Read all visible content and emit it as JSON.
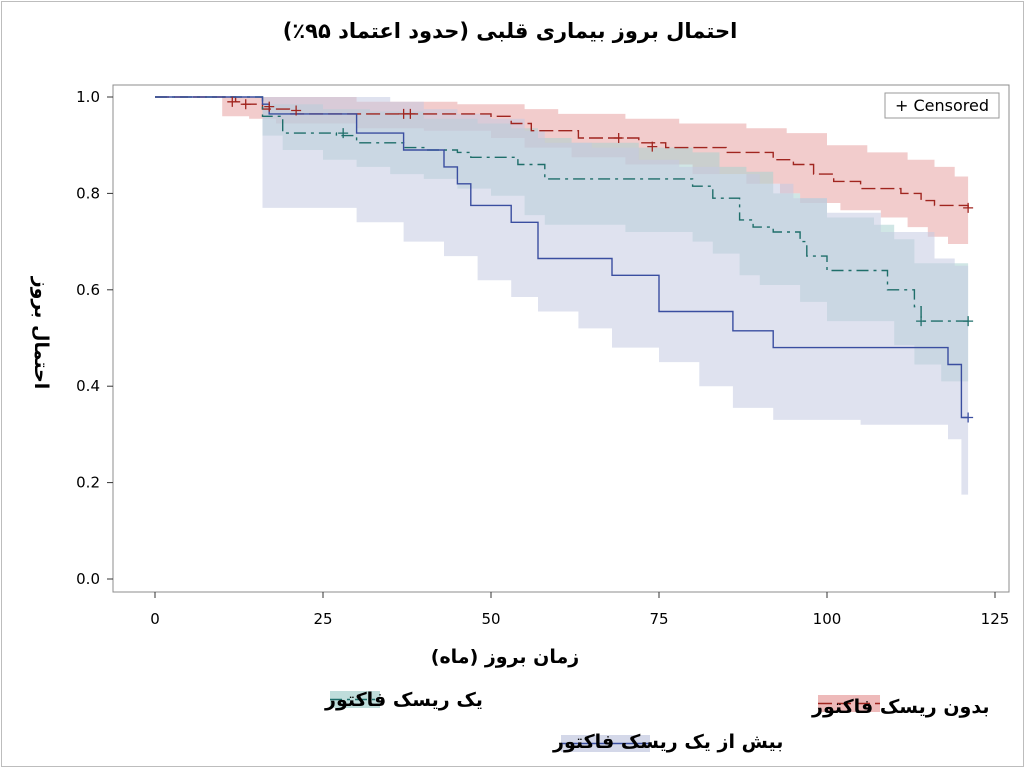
{
  "chart_data": {
    "type": "line",
    "title": "احتمال بروز بیماری قلبی (حدود اعتماد ۹۵٪)",
    "xlabel": "زمان بروز (ماه)",
    "ylabel": "احتمال بروز",
    "xlim": [
      0,
      125
    ],
    "ylim": [
      0,
      1.0
    ],
    "xticks": [
      "0",
      "25",
      "50",
      "75",
      "100",
      "125"
    ],
    "yticks": [
      "0.0",
      "0.2",
      "0.4",
      "0.6",
      "0.8",
      "1.0"
    ],
    "censored_label": "+ Censored",
    "grid": false,
    "legend": "bottom",
    "series": [
      {
        "name": "بدون ریسک فاکتور",
        "color": "#a0251f",
        "band_color": "#e8a3a3",
        "dash": "long-dash",
        "steps": [
          [
            0,
            1.0
          ],
          [
            12,
            0.99
          ],
          [
            13,
            0.985
          ],
          [
            16,
            0.975
          ],
          [
            20,
            0.965
          ],
          [
            50,
            0.96
          ],
          [
            53,
            0.945
          ],
          [
            56,
            0.93
          ],
          [
            63,
            0.915
          ],
          [
            72,
            0.905
          ],
          [
            76,
            0.895
          ],
          [
            85,
            0.885
          ],
          [
            92,
            0.87
          ],
          [
            95,
            0.86
          ],
          [
            98,
            0.84
          ],
          [
            101,
            0.825
          ],
          [
            105,
            0.81
          ],
          [
            111,
            0.8
          ],
          [
            114,
            0.785
          ],
          [
            116,
            0.775
          ],
          [
            121,
            0.77
          ]
        ],
        "lower": [
          [
            0,
            1.0
          ],
          [
            10,
            0.96
          ],
          [
            14,
            0.955
          ],
          [
            18,
            0.945
          ],
          [
            30,
            0.935
          ],
          [
            40,
            0.93
          ],
          [
            50,
            0.915
          ],
          [
            55,
            0.895
          ],
          [
            62,
            0.875
          ],
          [
            70,
            0.86
          ],
          [
            80,
            0.84
          ],
          [
            88,
            0.82
          ],
          [
            93,
            0.8
          ],
          [
            96,
            0.78
          ],
          [
            102,
            0.765
          ],
          [
            108,
            0.75
          ],
          [
            112,
            0.73
          ],
          [
            115,
            0.71
          ],
          [
            118,
            0.695
          ],
          [
            121,
            0.69
          ]
        ],
        "upper": [
          [
            0,
            1.0
          ],
          [
            15,
            1.0
          ],
          [
            30,
            0.99
          ],
          [
            45,
            0.985
          ],
          [
            55,
            0.975
          ],
          [
            60,
            0.965
          ],
          [
            70,
            0.955
          ],
          [
            78,
            0.945
          ],
          [
            88,
            0.935
          ],
          [
            94,
            0.925
          ],
          [
            100,
            0.9
          ],
          [
            106,
            0.885
          ],
          [
            112,
            0.87
          ],
          [
            116,
            0.855
          ],
          [
            119,
            0.835
          ],
          [
            121,
            0.83
          ]
        ],
        "censored": [
          [
            11.5,
            0.99
          ],
          [
            13.5,
            0.985
          ],
          [
            17,
            0.98
          ],
          [
            21,
            0.972
          ],
          [
            37,
            0.965
          ],
          [
            38,
            0.965
          ],
          [
            69,
            0.915
          ],
          [
            74,
            0.897
          ],
          [
            121,
            0.77
          ]
        ]
      },
      {
        "name": "یک ریسک فاکتور",
        "color": "#1e6e6a",
        "band_color": "#a9d1cf",
        "dash": "dash-dot",
        "steps": [
          [
            0,
            1.0
          ],
          [
            16,
            0.96
          ],
          [
            19,
            0.925
          ],
          [
            27,
            0.92
          ],
          [
            30,
            0.905
          ],
          [
            37,
            0.895
          ],
          [
            40,
            0.89
          ],
          [
            45,
            0.885
          ],
          [
            47,
            0.875
          ],
          [
            54,
            0.86
          ],
          [
            58,
            0.83
          ],
          [
            80,
            0.815
          ],
          [
            83,
            0.79
          ],
          [
            87,
            0.745
          ],
          [
            89,
            0.73
          ],
          [
            92,
            0.72
          ],
          [
            96,
            0.7
          ],
          [
            97,
            0.67
          ],
          [
            100,
            0.64
          ],
          [
            107,
            0.64
          ],
          [
            109,
            0.6
          ],
          [
            113,
            0.565
          ],
          [
            114,
            0.535
          ],
          [
            121,
            0.535
          ]
        ],
        "lower": [
          [
            0,
            1.0
          ],
          [
            16,
            0.92
          ],
          [
            19,
            0.89
          ],
          [
            25,
            0.87
          ],
          [
            30,
            0.855
          ],
          [
            35,
            0.84
          ],
          [
            40,
            0.83
          ],
          [
            45,
            0.81
          ],
          [
            50,
            0.795
          ],
          [
            55,
            0.755
          ],
          [
            58,
            0.735
          ],
          [
            70,
            0.72
          ],
          [
            80,
            0.7
          ],
          [
            83,
            0.675
          ],
          [
            87,
            0.63
          ],
          [
            90,
            0.61
          ],
          [
            96,
            0.575
          ],
          [
            100,
            0.535
          ],
          [
            110,
            0.485
          ],
          [
            113,
            0.445
          ],
          [
            117,
            0.41
          ],
          [
            121,
            0.41
          ]
        ],
        "upper": [
          [
            0,
            1.0
          ],
          [
            13,
            1.0
          ],
          [
            16,
            0.985
          ],
          [
            25,
            0.975
          ],
          [
            32,
            0.97
          ],
          [
            40,
            0.955
          ],
          [
            48,
            0.945
          ],
          [
            53,
            0.935
          ],
          [
            57,
            0.915
          ],
          [
            62,
            0.905
          ],
          [
            72,
            0.895
          ],
          [
            80,
            0.885
          ],
          [
            84,
            0.855
          ],
          [
            88,
            0.845
          ],
          [
            92,
            0.8
          ],
          [
            96,
            0.79
          ],
          [
            100,
            0.75
          ],
          [
            107,
            0.735
          ],
          [
            110,
            0.705
          ],
          [
            113,
            0.655
          ],
          [
            121,
            0.645
          ]
        ],
        "censored": [
          [
            28,
            0.925
          ],
          [
            114,
            0.535
          ],
          [
            121,
            0.535
          ]
        ]
      },
      {
        "name": "بیش از یک ریسک فاکتور",
        "color": "#3a4ea0",
        "band_color": "#c5cbe2",
        "dash": "solid",
        "steps": [
          [
            0,
            1.0
          ],
          [
            16,
            0.985
          ],
          [
            17,
            0.965
          ],
          [
            30,
            0.925
          ],
          [
            37,
            0.89
          ],
          [
            43,
            0.855
          ],
          [
            45,
            0.82
          ],
          [
            47,
            0.775
          ],
          [
            53,
            0.74
          ],
          [
            57,
            0.665
          ],
          [
            68,
            0.63
          ],
          [
            75,
            0.555
          ],
          [
            86,
            0.515
          ],
          [
            92,
            0.48
          ],
          [
            118,
            0.445
          ],
          [
            120,
            0.335
          ],
          [
            121,
            0.335
          ]
        ],
        "lower": [
          [
            0,
            1.0
          ],
          [
            16,
            0.77
          ],
          [
            30,
            0.74
          ],
          [
            37,
            0.7
          ],
          [
            43,
            0.67
          ],
          [
            48,
            0.62
          ],
          [
            53,
            0.585
          ],
          [
            57,
            0.555
          ],
          [
            63,
            0.52
          ],
          [
            68,
            0.48
          ],
          [
            75,
            0.45
          ],
          [
            81,
            0.4
          ],
          [
            86,
            0.355
          ],
          [
            92,
            0.33
          ],
          [
            105,
            0.32
          ],
          [
            118,
            0.29
          ],
          [
            120,
            0.175
          ],
          [
            121,
            0.17
          ]
        ],
        "upper": [
          [
            0,
            1.0
          ],
          [
            30,
            1.0
          ],
          [
            35,
            0.99
          ],
          [
            40,
            0.975
          ],
          [
            45,
            0.965
          ],
          [
            50,
            0.955
          ],
          [
            55,
            0.93
          ],
          [
            58,
            0.905
          ],
          [
            65,
            0.895
          ],
          [
            72,
            0.87
          ],
          [
            78,
            0.855
          ],
          [
            84,
            0.84
          ],
          [
            90,
            0.82
          ],
          [
            95,
            0.79
          ],
          [
            100,
            0.76
          ],
          [
            108,
            0.72
          ],
          [
            116,
            0.665
          ],
          [
            119,
            0.65
          ],
          [
            121,
            0.61
          ]
        ],
        "censored": [
          [
            121,
            0.335
          ]
        ]
      }
    ]
  }
}
